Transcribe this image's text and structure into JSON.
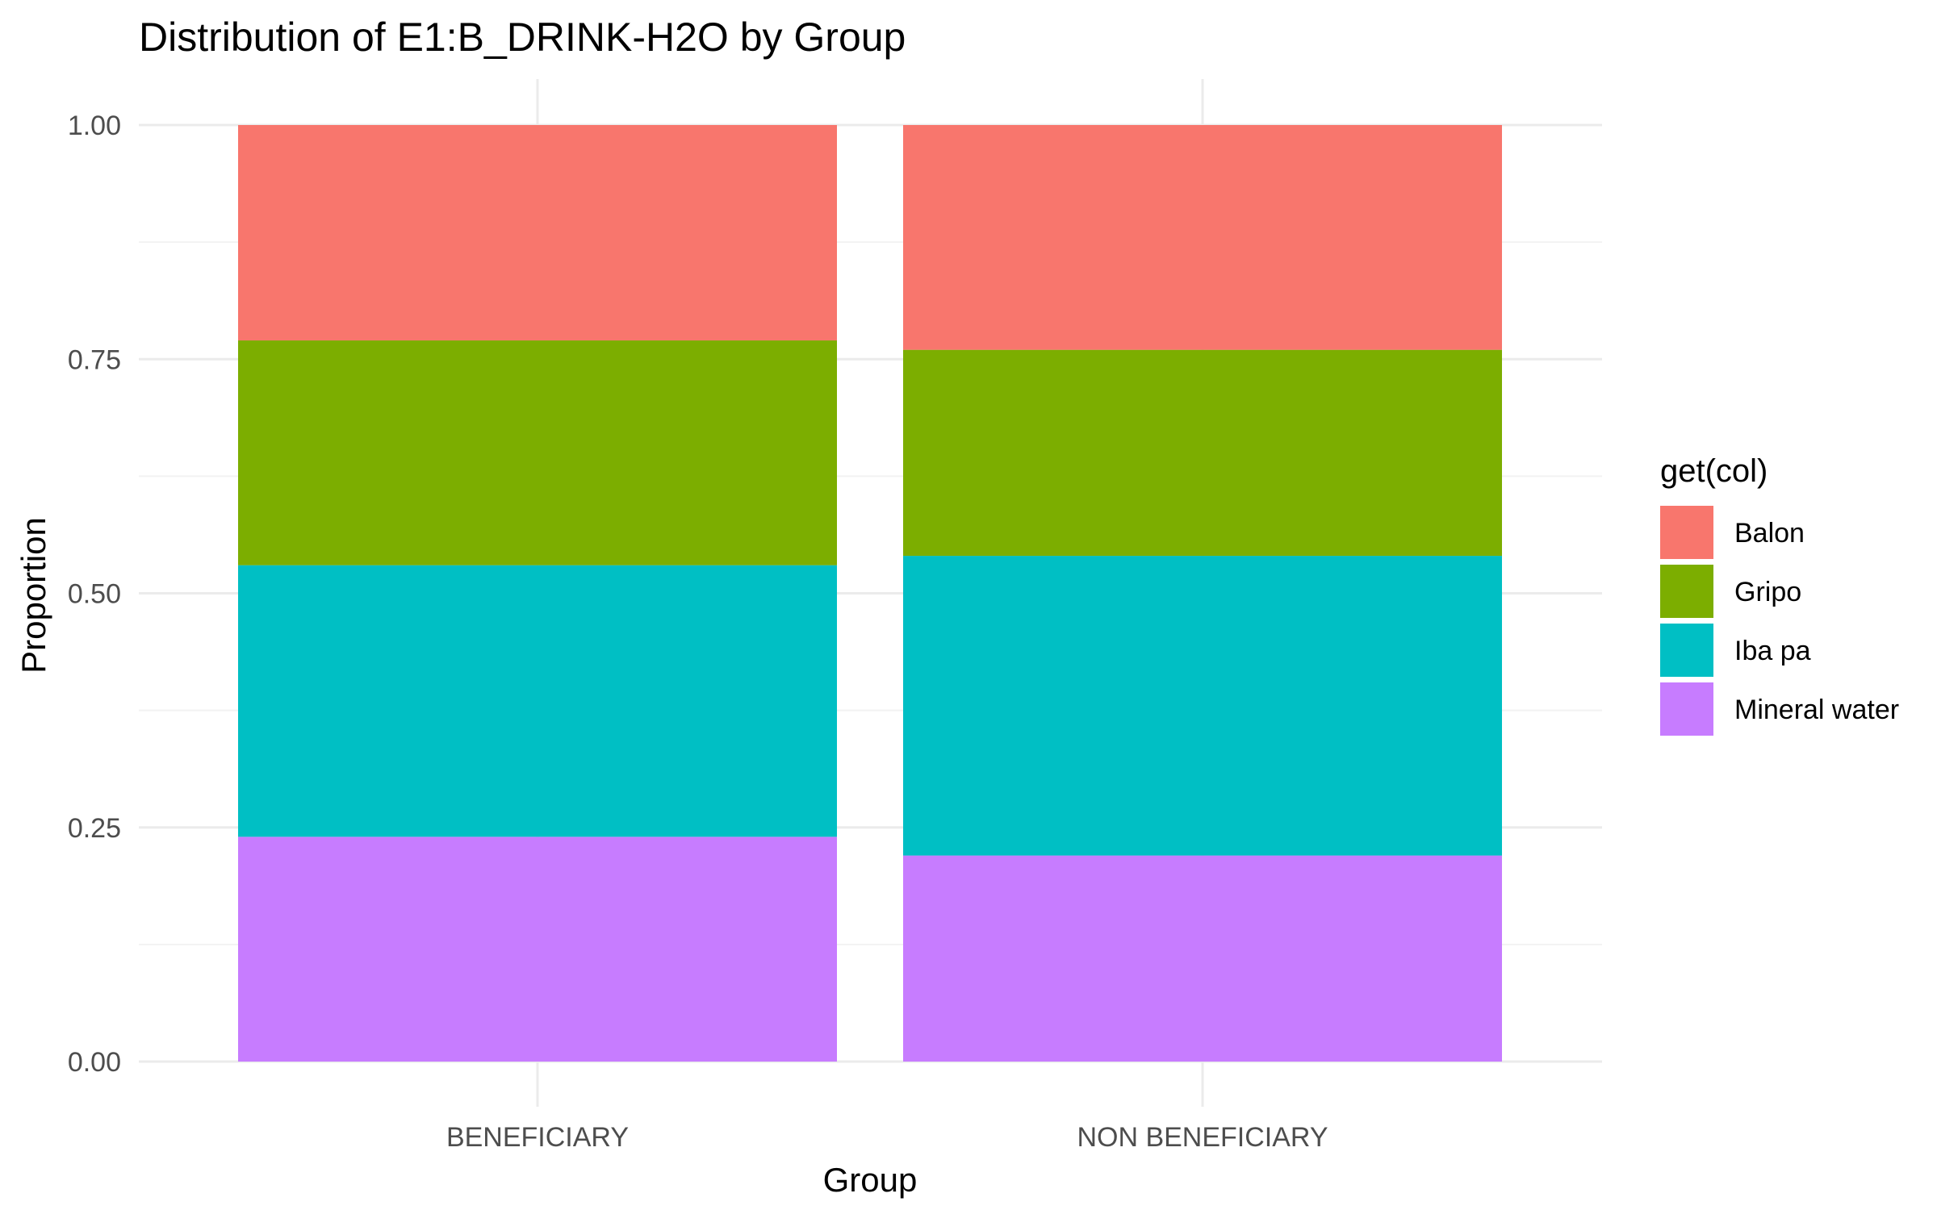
{
  "chart_data": {
    "type": "bar",
    "stacked": true,
    "title": "Distribution of E1:B_DRINK-H2O by Group",
    "xlabel": "Group",
    "ylabel": "Proportion",
    "ylim": [
      0,
      1
    ],
    "yticks": [
      "0.00",
      "0.25",
      "0.50",
      "0.75",
      "1.00"
    ],
    "grid": true,
    "legend": {
      "title": "get(col)",
      "position": "right"
    },
    "categories": [
      "BENEFICIARY",
      "NON BENEFICIARY"
    ],
    "series": [
      {
        "name": "Mineral water",
        "color": "#C77CFF",
        "values": [
          0.24,
          0.22
        ]
      },
      {
        "name": "Iba pa",
        "color": "#00BFC4",
        "values": [
          0.29,
          0.32
        ]
      },
      {
        "name": "Gripo",
        "color": "#7CAE00",
        "values": [
          0.24,
          0.22
        ]
      },
      {
        "name": "Balon",
        "color": "#F8766D",
        "values": [
          0.23,
          0.24
        ]
      }
    ]
  }
}
